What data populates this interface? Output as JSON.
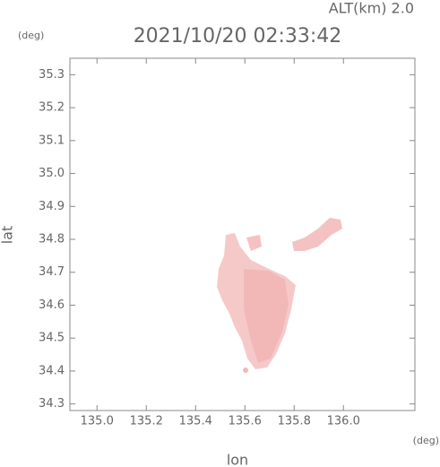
{
  "chart_data": {
    "type": "map",
    "title": "2021/10/20 02:33:42",
    "altitude_label": "ALT(km) 2.0",
    "x_label": "lon",
    "y_label": "lat",
    "x_unit": "(deg)",
    "y_unit": "(deg)",
    "xlim": [
      134.89,
      136.29
    ],
    "ylim": [
      34.28,
      35.35
    ],
    "xticks": [
      {
        "value": 135.0,
        "label": "135.0"
      },
      135.2,
      135.4,
      135.6,
      135.8,
      {
        "value": 136.0,
        "label": "136.0"
      }
    ],
    "yticks": [
      34.3,
      34.4,
      34.5,
      34.6,
      34.7,
      34.8,
      34.9,
      {
        "value": 35.0,
        "label": "35.0"
      },
      35.1,
      35.2,
      35.3
    ]
  }
}
